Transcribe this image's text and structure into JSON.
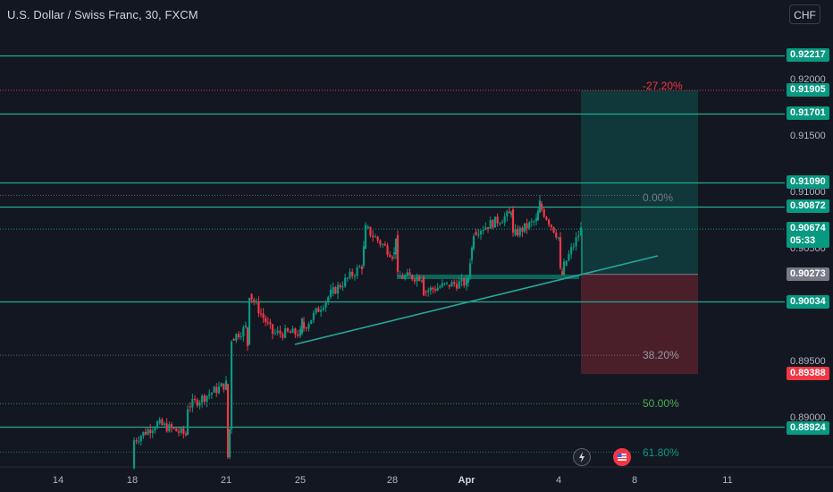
{
  "header": {
    "symbol_title": "U.S. Dollar / Swiss Franc, 30, FXCM",
    "currency_button": "CHF"
  },
  "price_axis": {
    "ticks": [
      "0.92000",
      "0.91500",
      "0.91000",
      "0.90500",
      "0.90000",
      "0.89500",
      "0.89000"
    ]
  },
  "price_badges": [
    {
      "id": "l92217",
      "label": "0.92217",
      "color": "#089981"
    },
    {
      "id": "l91905",
      "label": "0.91905",
      "color": "#089981"
    },
    {
      "id": "l91701",
      "label": "0.91701",
      "color": "#089981"
    },
    {
      "id": "l91090",
      "label": "0.91090",
      "color": "#089981"
    },
    {
      "id": "l90872",
      "label": "0.90872",
      "color": "#089981"
    },
    {
      "id": "l90674",
      "label": "0.90674",
      "color": "#089981"
    },
    {
      "id": "countdown",
      "label": "05:33",
      "color": "#089981"
    },
    {
      "id": "l90273",
      "label": "0.90273",
      "color": "#787b86"
    },
    {
      "id": "l90034",
      "label": "0.90034",
      "color": "#089981"
    },
    {
      "id": "l89388",
      "label": "0.89388",
      "color": "#f23645"
    },
    {
      "id": "l88924",
      "label": "0.88924",
      "color": "#089981"
    }
  ],
  "fib_labels": {
    "m2720": "-27.20%",
    "zero": "0.00%",
    "f382": "38.20%",
    "f500": "50.00%",
    "f618": "61.80%"
  },
  "time_axis": {
    "ticks": [
      "14",
      "18",
      "21",
      "25",
      "28",
      "Apr",
      "4",
      "8",
      "11"
    ]
  },
  "colors": {
    "background": "#131722",
    "up": "#089981",
    "down": "#f23645",
    "horizontal_line": "#22ab94",
    "trendline": "#26a69a"
  },
  "icons": {
    "toolbar_1": "lightning-icon",
    "toolbar_2": "us-flag-icon"
  },
  "chart_data": {
    "type": "candlestick",
    "title": "U.S. Dollar / Swiss Franc, 30, FXCM",
    "y_ticks": [
      0.92,
      0.915,
      0.91,
      0.905,
      0.9,
      0.895,
      0.89
    ],
    "ylim": [
      0.8855,
      0.9262
    ],
    "x_ticks": [
      "14",
      "18",
      "21",
      "25",
      "28",
      "Apr",
      "4",
      "8",
      "11"
    ],
    "last_price": 0.90674,
    "horizontal_levels": [
      0.92217,
      0.91701,
      0.9109,
      0.90872,
      0.90034,
      0.88924
    ],
    "position": {
      "entry": 0.90273,
      "target": 0.91905,
      "stop": 0.89388
    },
    "fibonacci": [
      {
        "level": "-27.20%",
        "price": 0.91905
      },
      {
        "level": "0.00%",
        "price": 0.90973
      },
      {
        "level": "38.20%",
        "price": 0.89555
      },
      {
        "level": "50.00%",
        "price": 0.89125
      },
      {
        "level": "61.80%",
        "price": 0.88695
      }
    ],
    "price_path": [
      [
        "18",
        0.8855
      ],
      [
        "18",
        0.888
      ],
      [
        "19",
        0.8895
      ],
      [
        "20",
        0.8885
      ],
      [
        "20",
        0.891
      ],
      [
        "21",
        0.893
      ],
      [
        "21",
        0.8865
      ],
      [
        "21",
        0.889
      ],
      [
        "21",
        0.897
      ],
      [
        "22",
        0.898
      ],
      [
        "22",
        0.8965
      ],
      [
        "22",
        0.901
      ],
      [
        "23",
        0.8975
      ],
      [
        "25",
        0.8975
      ],
      [
        "25",
        0.8985
      ],
      [
        "25",
        0.898
      ],
      [
        "26",
        0.901
      ],
      [
        "27",
        0.9035
      ],
      [
        "27",
        0.905
      ],
      [
        "27",
        0.9068
      ],
      [
        "28",
        0.9045
      ],
      [
        "28",
        0.9045
      ],
      [
        "28",
        0.9062
      ],
      [
        "28",
        0.9025
      ],
      [
        "29",
        0.9025
      ],
      [
        "29",
        0.9012
      ],
      [
        "30",
        0.9018
      ],
      [
        "Apr",
        0.902
      ],
      [
        "Apr",
        0.9025
      ],
      [
        "Apr",
        0.904
      ],
      [
        "Apr",
        0.905
      ],
      [
        "Apr",
        0.9065
      ],
      [
        "2",
        0.908
      ],
      [
        "2",
        0.9085
      ],
      [
        "2",
        0.9062
      ],
      [
        "3",
        0.9075
      ],
      [
        "3",
        0.9082
      ],
      [
        "3",
        0.909
      ],
      [
        "3",
        0.9085
      ],
      [
        "4",
        0.906
      ],
      [
        "4",
        0.903
      ],
      [
        "4",
        0.9027
      ],
      [
        "4",
        0.9035
      ],
      [
        "4",
        0.9067
      ]
    ]
  }
}
